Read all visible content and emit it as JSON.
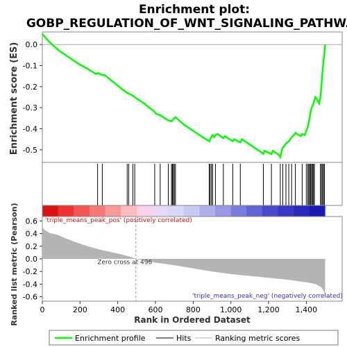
{
  "chart_data": {
    "type": "line",
    "title": "Enrichment plot:\nGOBP_REGULATION_OF_WNT_SIGNALING_PATHWAY",
    "title_lines": [
      "Enrichment plot:",
      "GOBP_REGULATION_OF_WNT_SIGNALING_PATHWAY"
    ],
    "xlabel": "Rank in Ordered Dataset",
    "xlim": [
      0,
      1590
    ],
    "x_ticks": [
      0,
      200,
      400,
      600,
      800,
      1000,
      1200,
      1400
    ],
    "x_tick_labels": [
      "0",
      "200",
      "400",
      "600",
      "800",
      "1,000",
      "1,200",
      "1,400"
    ],
    "es_panel": {
      "ylabel": "Enrichment score (ES)",
      "ylim": [
        -0.56,
        0.06
      ],
      "y_ticks": [
        0.0,
        -0.1,
        -0.2,
        -0.3,
        -0.4,
        -0.5
      ],
      "y_tick_labels": [
        "0.0",
        "-0.1",
        "-0.2",
        "-0.3",
        "-0.4",
        "-0.5"
      ],
      "line_color": "#00ff00",
      "points": [
        [
          0,
          0.05
        ],
        [
          40,
          0.01
        ],
        [
          90,
          -0.03
        ],
        [
          140,
          -0.06
        ],
        [
          190,
          -0.09
        ],
        [
          240,
          -0.115
        ],
        [
          285,
          -0.14
        ],
        [
          293,
          -0.135
        ],
        [
          305,
          -0.14
        ],
        [
          318,
          -0.145
        ],
        [
          330,
          -0.145
        ],
        [
          380,
          -0.18
        ],
        [
          420,
          -0.21
        ],
        [
          450,
          -0.23
        ],
        [
          475,
          -0.24
        ],
        [
          490,
          -0.25
        ],
        [
          540,
          -0.28
        ],
        [
          596,
          -0.32
        ],
        [
          605,
          -0.33
        ],
        [
          625,
          -0.335
        ],
        [
          650,
          -0.35
        ],
        [
          668,
          -0.36
        ],
        [
          675,
          -0.362
        ],
        [
          685,
          -0.365
        ],
        [
          690,
          -0.36
        ],
        [
          695,
          -0.355
        ],
        [
          700,
          -0.35
        ],
        [
          706,
          -0.345
        ],
        [
          750,
          -0.38
        ],
        [
          800,
          -0.41
        ],
        [
          850,
          -0.44
        ],
        [
          885,
          -0.46
        ],
        [
          890,
          -0.45
        ],
        [
          897,
          -0.44
        ],
        [
          903,
          -0.43
        ],
        [
          912,
          -0.44
        ],
        [
          918,
          -0.43
        ],
        [
          930,
          -0.425
        ],
        [
          960,
          -0.445
        ],
        [
          968,
          -0.435
        ],
        [
          1010,
          -0.46
        ],
        [
          1018,
          -0.45
        ],
        [
          1050,
          -0.465
        ],
        [
          1058,
          -0.45
        ],
        [
          1100,
          -0.475
        ],
        [
          1150,
          -0.505
        ],
        [
          1172,
          -0.52
        ],
        [
          1178,
          -0.505
        ],
        [
          1215,
          -0.52
        ],
        [
          1222,
          -0.505
        ],
        [
          1255,
          -0.525
        ],
        [
          1262,
          -0.535
        ],
        [
          1268,
          -0.51
        ],
        [
          1275,
          -0.49
        ],
        [
          1285,
          -0.48
        ],
        [
          1292,
          -0.47
        ],
        [
          1300,
          -0.465
        ],
        [
          1307,
          -0.46
        ],
        [
          1315,
          -0.45
        ],
        [
          1322,
          -0.44
        ],
        [
          1335,
          -0.43
        ],
        [
          1342,
          -0.42
        ],
        [
          1370,
          -0.435
        ],
        [
          1378,
          -0.425
        ],
        [
          1392,
          -0.43
        ],
        [
          1400,
          -0.41
        ],
        [
          1408,
          -0.39
        ],
        [
          1413,
          -0.37
        ],
        [
          1418,
          -0.345
        ],
        [
          1423,
          -0.32
        ],
        [
          1428,
          -0.3
        ],
        [
          1433,
          -0.29
        ],
        [
          1438,
          -0.28
        ],
        [
          1443,
          -0.265
        ],
        [
          1448,
          -0.25
        ],
        [
          1453,
          -0.255
        ],
        [
          1468,
          -0.28
        ],
        [
          1475,
          -0.25
        ],
        [
          1480,
          -0.2
        ],
        [
          1486,
          -0.13
        ],
        [
          1491,
          -0.08
        ],
        [
          1496,
          -0.04
        ],
        [
          1500,
          0.0
        ]
      ]
    },
    "hits": [
      293,
      318,
      450,
      458,
      480,
      490,
      596,
      625,
      668,
      685,
      690,
      695,
      700,
      706,
      885,
      890,
      897,
      903,
      918,
      960,
      1010,
      1050,
      1172,
      1215,
      1262,
      1275,
      1292,
      1307,
      1322,
      1342,
      1378,
      1400,
      1408,
      1413,
      1418,
      1423,
      1428,
      1433,
      1438,
      1443,
      1475,
      1480,
      1486,
      1491,
      1496
    ],
    "heatbar_colors": [
      "#dd1111",
      "#ee3333",
      "#f25555",
      "#f57777",
      "#f89999",
      "#fbbbbb",
      "#fcd0e8",
      "#e8d8f8",
      "#d8d8f8",
      "#c8c8f4",
      "#b0b0ec",
      "#9898e4",
      "#7c7cdc",
      "#6262d4",
      "#4a4acc",
      "#3838c4",
      "#2828bc",
      "#1a1ab0"
    ],
    "metric_panel": {
      "ylabel": "Ranked list metric (Pearson)",
      "ylim": [
        -0.67,
        0.67
      ],
      "y_ticks": [
        0.6,
        0.4,
        0.2,
        0.0,
        -0.2,
        -0.4,
        -0.6
      ],
      "y_tick_labels": [
        "0.6",
        "0.4",
        "0.2",
        "0.0",
        "-0.2",
        "-0.4",
        "-0.6"
      ],
      "fill_color": "#b4b4b4",
      "curve": [
        [
          0,
          0.52
        ],
        [
          5,
          0.48
        ],
        [
          15,
          0.45
        ],
        [
          40,
          0.41
        ],
        [
          80,
          0.38
        ],
        [
          120,
          0.33
        ],
        [
          180,
          0.26
        ],
        [
          240,
          0.2
        ],
        [
          300,
          0.15
        ],
        [
          360,
          0.11
        ],
        [
          420,
          0.07
        ],
        [
          470,
          0.03
        ],
        [
          496,
          0.0
        ],
        [
          550,
          -0.03
        ],
        [
          600,
          -0.06
        ],
        [
          700,
          -0.1
        ],
        [
          800,
          -0.15
        ],
        [
          900,
          -0.2
        ],
        [
          1000,
          -0.24
        ],
        [
          1100,
          -0.27
        ],
        [
          1200,
          -0.3
        ],
        [
          1300,
          -0.33
        ],
        [
          1400,
          -0.37
        ],
        [
          1450,
          -0.4
        ],
        [
          1480,
          -0.45
        ],
        [
          1495,
          -0.53
        ],
        [
          1500,
          -0.6
        ]
      ],
      "zero_cross_label": "Zero cross at 496",
      "zero_cross": 496,
      "pos_label": "'triple_means_peak_pos' (positively correlated)",
      "neg_label": "'triple_means_peak_neg' (negatively correlated)"
    },
    "legend": {
      "placement": "bottom",
      "entries": [
        {
          "label": "Enrichment profile",
          "color": "#00ff00"
        },
        {
          "label": "Hits",
          "color": "#000000"
        },
        {
          "label": "Ranking metric scores",
          "color": "#b4b4b4"
        }
      ]
    }
  }
}
